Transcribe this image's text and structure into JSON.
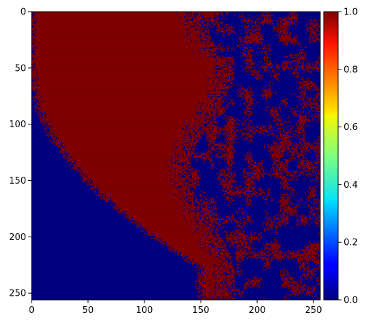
{
  "chart_data": {
    "type": "heatmap",
    "title": "",
    "xlabel": "",
    "ylabel": "",
    "xlim": [
      0,
      256
    ],
    "ylim": [
      256,
      0
    ],
    "x_ticks": [
      "0",
      "50",
      "100",
      "150",
      "200",
      "250"
    ],
    "y_ticks": [
      "0",
      "50",
      "100",
      "150",
      "200",
      "250"
    ],
    "colorbar": {
      "colormap": "jet",
      "range": [
        0,
        1
      ],
      "ticks": [
        "0.0",
        "0.2",
        "0.4",
        "0.6",
        "0.8",
        "1.0"
      ]
    },
    "value_colors": {
      "0": "#00007f",
      "1": "#7f0000"
    },
    "description_values": {
      "grid_size": [
        256,
        256
      ],
      "values_present": [
        0,
        1
      ]
    }
  }
}
